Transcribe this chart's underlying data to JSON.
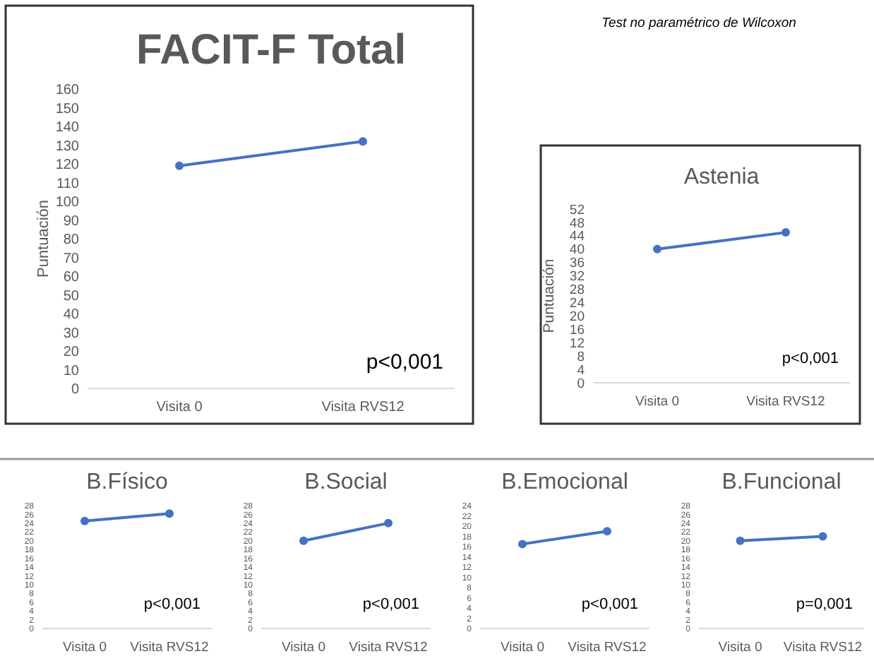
{
  "chart_data": [
    {
      "type": "line",
      "title": "FACIT-F Total",
      "ylabel": "Puntuación",
      "categories": [
        "Visita 0",
        "Visita RVS12"
      ],
      "series": [
        {
          "color": "#4472c4",
          "values": [
            119,
            132
          ]
        }
      ],
      "ylim": [
        0,
        160
      ],
      "yticks": [
        0,
        10,
        20,
        30,
        40,
        50,
        60,
        70,
        80,
        90,
        100,
        110,
        120,
        130,
        140,
        150,
        160
      ],
      "marker": "circle",
      "grid": false,
      "annotations": [
        "p<0,001"
      ]
    },
    {
      "type": "line",
      "title": "Astenia",
      "ylabel": "Puntuación",
      "categories": [
        "Visita 0",
        "Visita RVS12"
      ],
      "series": [
        {
          "color": "#4472c4",
          "values": [
            40,
            45
          ]
        }
      ],
      "ylim": [
        0,
        52
      ],
      "yticks": [
        0,
        4,
        8,
        12,
        16,
        20,
        24,
        28,
        32,
        36,
        40,
        44,
        48,
        52
      ],
      "marker": "circle",
      "grid": false,
      "annotations": [
        "p<0,001"
      ]
    },
    {
      "type": "line",
      "title": "B.Físico",
      "categories": [
        "Visita 0",
        "Visita RVS12"
      ],
      "series": [
        {
          "color": "#4472c4",
          "values": [
            24.5,
            26.2
          ]
        }
      ],
      "ylim": [
        0,
        28
      ],
      "yticks": [
        0,
        2,
        4,
        6,
        8,
        10,
        12,
        14,
        16,
        18,
        20,
        22,
        24,
        26,
        28
      ],
      "marker": "circle",
      "grid": false,
      "annotations": [
        "p<0,001"
      ]
    },
    {
      "type": "line",
      "title": "B.Social",
      "categories": [
        "Visita 0",
        "Visita RVS12"
      ],
      "series": [
        {
          "color": "#4472c4",
          "values": [
            20,
            24
          ]
        }
      ],
      "ylim": [
        0,
        28
      ],
      "yticks": [
        0,
        2,
        4,
        6,
        8,
        10,
        12,
        14,
        16,
        18,
        20,
        22,
        24,
        26,
        28
      ],
      "marker": "circle",
      "grid": false,
      "annotations": [
        "p<0,001"
      ]
    },
    {
      "type": "line",
      "title": "B.Emocional",
      "categories": [
        "Visita 0",
        "Visita RVS12"
      ],
      "series": [
        {
          "color": "#4472c4",
          "values": [
            16.5,
            19
          ]
        }
      ],
      "ylim": [
        0,
        24
      ],
      "yticks": [
        0,
        2,
        4,
        6,
        8,
        10,
        12,
        14,
        16,
        18,
        20,
        22,
        24
      ],
      "marker": "circle",
      "grid": false,
      "annotations": [
        "p<0,001"
      ]
    },
    {
      "type": "line",
      "title": "B.Funcional",
      "categories": [
        "Visita 0",
        "Visita RVS12"
      ],
      "series": [
        {
          "color": "#4472c4",
          "values": [
            20,
            21
          ]
        }
      ],
      "ylim": [
        0,
        28
      ],
      "yticks": [
        0,
        2,
        4,
        6,
        8,
        10,
        12,
        14,
        16,
        18,
        20,
        22,
        24,
        26,
        28
      ],
      "marker": "circle",
      "grid": false,
      "annotations": [
        "p=0,001"
      ]
    },
    {
      "type": "other",
      "annotations": [
        "Test no paramétrico de Wilcoxon"
      ]
    }
  ]
}
